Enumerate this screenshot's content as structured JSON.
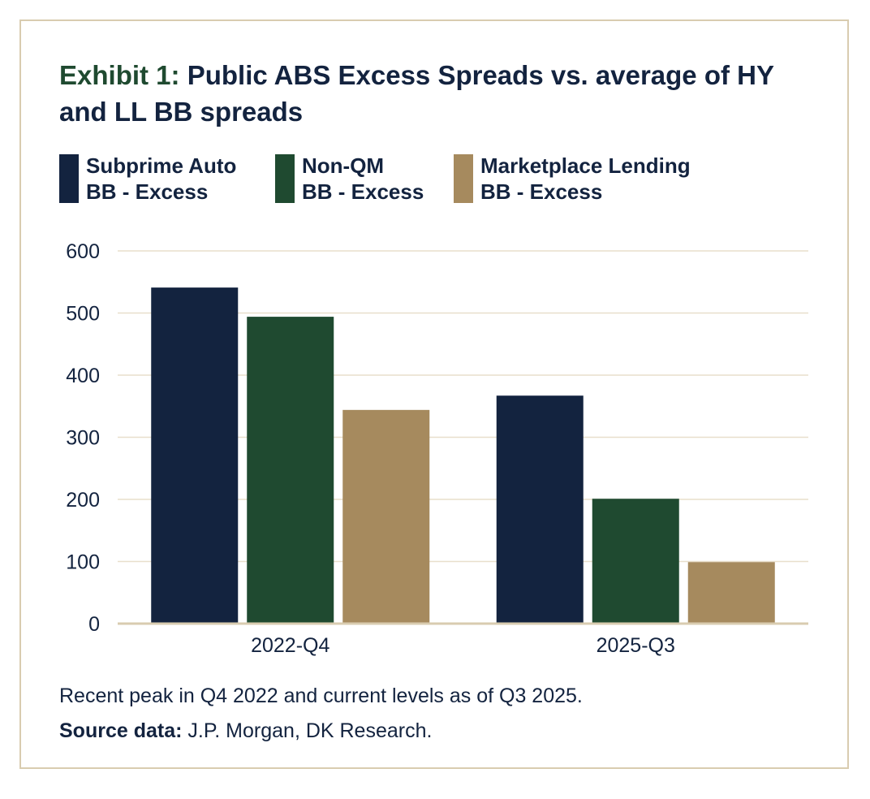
{
  "title": {
    "label": "Exhibit 1:",
    "text": " Public ABS Excess Spreads vs. average of HY and LL BB spreads"
  },
  "legend": [
    {
      "line1": "Subprime Auto",
      "line2": "BB - Excess",
      "color": "#13233f"
    },
    {
      "line1": "Non-QM",
      "line2": "BB - Excess",
      "color": "#1f4a30"
    },
    {
      "line1": "Marketplace Lending",
      "line2": "BB - Excess",
      "color": "#a68a5e"
    }
  ],
  "chart_data": {
    "type": "bar",
    "categories": [
      "2022-Q4",
      "2025-Q3"
    ],
    "series": [
      {
        "name": "Subprime Auto BB - Excess",
        "values": [
          541,
          367
        ],
        "color": "#13233f"
      },
      {
        "name": "Non-QM BB - Excess",
        "values": [
          494,
          201
        ],
        "color": "#1f4a30"
      },
      {
        "name": "Marketplace Lending BB - Excess",
        "values": [
          344,
          99
        ],
        "color": "#a68a5e"
      }
    ],
    "yticks": [
      0,
      100,
      200,
      300,
      400,
      500,
      600
    ],
    "ylim": [
      0,
      600
    ],
    "grid": true,
    "legend_position": "top",
    "gridline_color": "#e8dfcc",
    "axis_color": "#d9ccb0"
  },
  "footer": {
    "note": "Recent peak in Q4 2022 and current levels as of Q3 2025.",
    "source_label": "Source data:",
    "source_text": " J.P. Morgan, DK Research."
  }
}
